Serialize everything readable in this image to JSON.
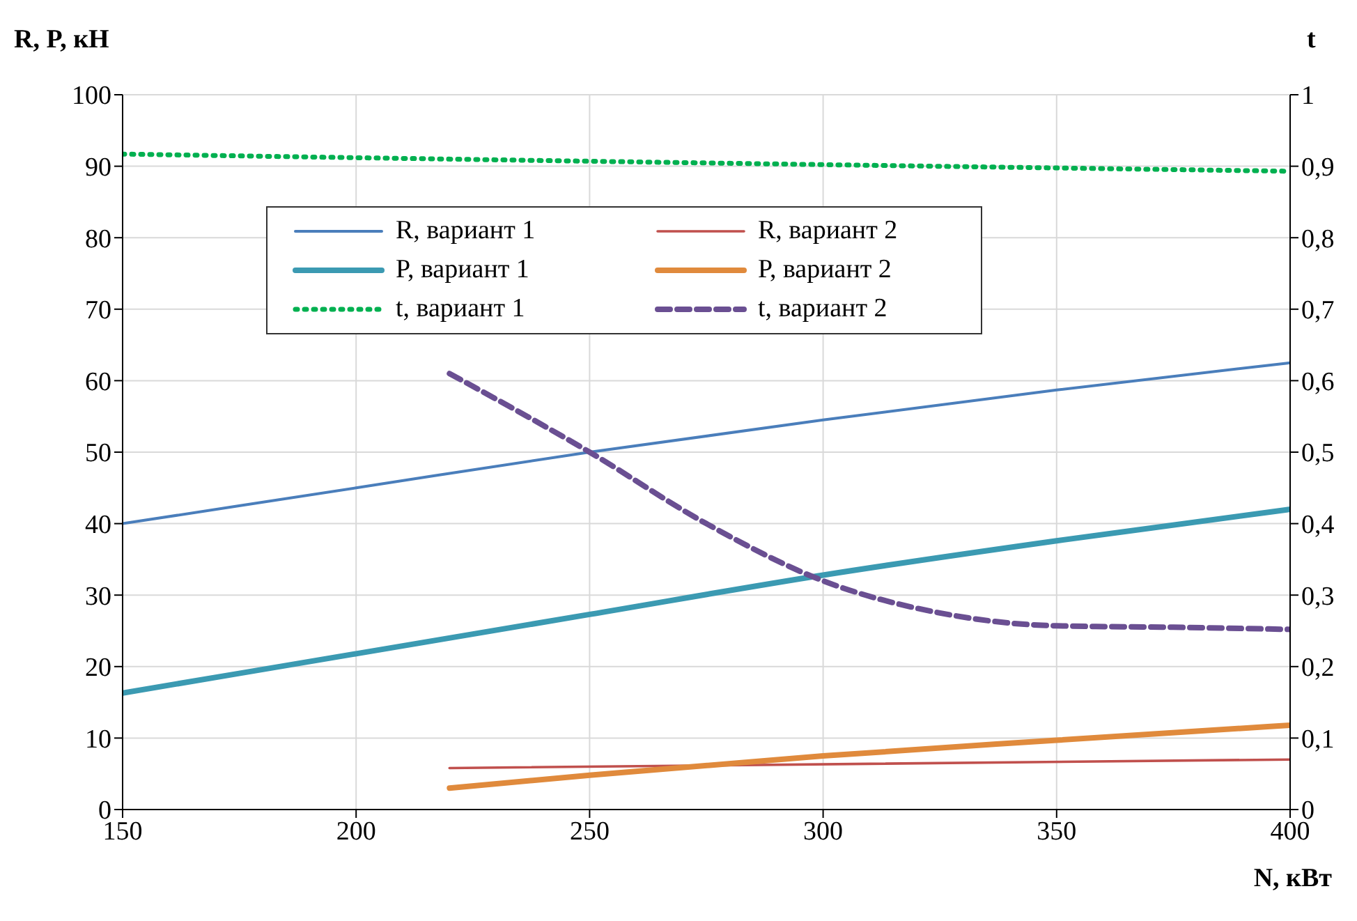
{
  "chart_data": {
    "type": "line",
    "xlabel": "N, кВт",
    "ylabel": "R, P, кН",
    "y2label": "t",
    "xlim": [
      150,
      400
    ],
    "xticks": [
      150,
      200,
      250,
      300,
      350,
      400
    ],
    "ylim": [
      0,
      100
    ],
    "yticks": [
      0,
      10,
      20,
      30,
      40,
      50,
      60,
      70,
      80,
      90,
      100
    ],
    "y2lim": [
      0,
      1
    ],
    "y2ticks": [
      0,
      {
        "value": 0.1,
        "label": "0,1"
      },
      {
        "value": 0.2,
        "label": "0,2"
      },
      {
        "value": 0.3,
        "label": "0,3"
      },
      {
        "value": 0.4,
        "label": "0,4"
      },
      {
        "value": 0.5,
        "label": "0,5"
      },
      {
        "value": 0.6,
        "label": "0,6"
      },
      {
        "value": 0.7,
        "label": "0,7"
      },
      {
        "value": 0.8,
        "label": "0,8"
      },
      {
        "value": 0.9,
        "label": "0,9"
      },
      1
    ],
    "grid": true,
    "legend": "top left",
    "marker": "none",
    "series": [
      {
        "name": "R, вариант 1",
        "color": "#4a7ebb",
        "line_style": "solid",
        "x": [
          150,
          200,
          250,
          300,
          350,
          400
        ],
        "values": [
          40,
          45,
          50,
          54.5,
          58.7,
          62.5
        ]
      },
      {
        "name": "R, вариант 2",
        "color": "#c0504d",
        "line_style": "solid",
        "x": [
          220,
          400
        ],
        "values": [
          5.8,
          7
        ]
      },
      {
        "name": "P, вариант 1",
        "color": "#3b9ab2",
        "line_style": "solid",
        "x": [
          150,
          200,
          250,
          300,
          350,
          400
        ],
        "values": [
          16.3,
          21.8,
          27.3,
          32.8,
          37.6,
          42
        ]
      },
      {
        "name": "P, вариант 2",
        "color": "#e08a3c",
        "line_style": "solid",
        "x": [
          220,
          250,
          300,
          350,
          400
        ],
        "values": [
          3,
          4.8,
          7.5,
          9.7,
          11.8
        ]
      },
      {
        "name": "t, вариант 1",
        "color": "#00b050",
        "line_style": "dotted",
        "axis": "y2",
        "x": [
          150,
          250,
          400
        ],
        "values": [
          0.917,
          0.907,
          0.893
        ]
      },
      {
        "name": "t, вариант 2",
        "color": "#6a4f92",
        "line_style": "dashed",
        "axis": "y2",
        "x": [
          220,
          250,
          275,
          300,
          325,
          350,
          375,
          400
        ],
        "values": [
          0.61,
          0.5,
          0.4,
          0.32,
          0.275,
          0.257,
          0.255,
          0.252
        ]
      }
    ]
  }
}
